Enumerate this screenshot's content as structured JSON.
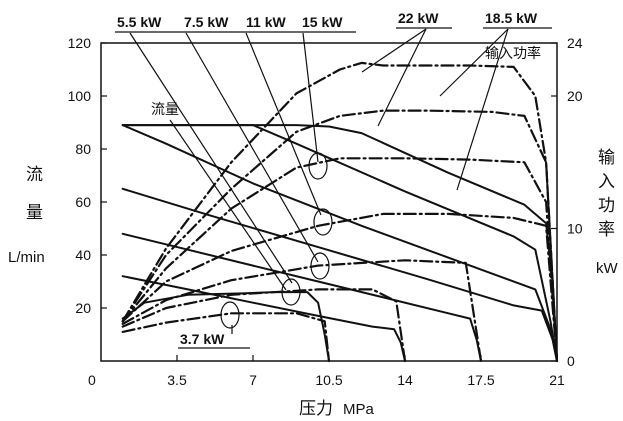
{
  "chart_data": {
    "type": "line",
    "x_axis": {
      "label": "压力",
      "unit": "MPa",
      "range": [
        0,
        21
      ],
      "ticks": [
        0,
        3.5,
        7,
        10.5,
        14,
        17.5,
        21
      ],
      "tick_labels": [
        "0",
        "3.5",
        "7",
        "10.5",
        "14",
        "17.5",
        "21"
      ]
    },
    "y_left": {
      "label_chars": [
        "流",
        "量"
      ],
      "unit": "L/min",
      "range": [
        0,
        120
      ],
      "ticks": [
        20,
        40,
        60,
        80,
        100,
        120
      ],
      "tick_labels": [
        "20",
        "40",
        "60",
        "80",
        "100",
        "120"
      ]
    },
    "y_right": {
      "label_chars": [
        "输",
        "入",
        "功",
        "率"
      ],
      "unit": "kW",
      "range": [
        0,
        24
      ],
      "ticks": [
        0,
        10,
        20,
        24
      ],
      "tick_labels": [
        "0",
        "10",
        "20",
        "24"
      ]
    },
    "annotations": {
      "flow": "流量",
      "power": "输入功率"
    },
    "motor_labels": [
      "5.5 kW",
      "7.5 kW",
      "11 kW",
      "15 kW",
      "22 kW",
      "18.5 kW",
      "3.7 kW"
    ],
    "grid": false,
    "series": [
      {
        "motor": "3.7 kW",
        "kind": "flow",
        "x": [
          1,
          2,
          4,
          6.5,
          8,
          9.5,
          10,
          10.3,
          10.5
        ],
        "y": [
          16,
          22,
          25,
          25.5,
          26,
          26,
          22,
          10,
          0
        ]
      },
      {
        "motor": "5.5 kW",
        "kind": "flow",
        "x": [
          1,
          4,
          7,
          10,
          12.5,
          13.5,
          13.8,
          14
        ],
        "y": [
          32,
          27,
          22,
          17,
          13,
          12,
          7,
          0
        ]
      },
      {
        "motor": "7.5 kW",
        "kind": "flow",
        "x": [
          1,
          4,
          7,
          10,
          13,
          16,
          17,
          17.3,
          17.5
        ],
        "y": [
          48,
          42,
          36,
          30,
          24,
          18,
          16,
          8,
          0
        ]
      },
      {
        "motor": "11 kW",
        "kind": "flow",
        "x": [
          1,
          5,
          10,
          15,
          19,
          20.3,
          20.8,
          21
        ],
        "y": [
          65,
          55,
          43,
          31,
          21,
          19,
          8,
          0
        ]
      },
      {
        "motor": "15 kW",
        "kind": "flow",
        "x": [
          1,
          3,
          7,
          12,
          17,
          20,
          20.7,
          21
        ],
        "y": [
          89,
          82,
          67,
          51,
          36,
          27,
          12,
          0
        ]
      },
      {
        "motor": "18.5 kW",
        "kind": "flow",
        "x": [
          1,
          4,
          7,
          9,
          14,
          19,
          20,
          20.7,
          21
        ],
        "y": [
          89,
          89,
          89,
          82,
          64,
          47,
          42,
          15,
          0
        ]
      },
      {
        "motor": "22 kW",
        "kind": "flow",
        "x": [
          1,
          5,
          9,
          10.5,
          12,
          16,
          19.5,
          20.5,
          20.8,
          21
        ],
        "y": [
          89,
          89,
          89,
          88.5,
          86,
          71,
          59,
          52,
          30,
          0
        ]
      },
      {
        "motor": "3.7 kW",
        "kind": "power",
        "x": [
          1,
          3,
          6,
          9,
          10.3,
          10.5
        ],
        "y": [
          2.2,
          2.9,
          3.6,
          3.6,
          3.0,
          0
        ]
      },
      {
        "motor": "5.5 kW",
        "kind": "power",
        "x": [
          1,
          3,
          6,
          10,
          12.5,
          13.6,
          14
        ],
        "y": [
          2.6,
          4.0,
          5.0,
          5.4,
          5.4,
          4.5,
          0
        ]
      },
      {
        "motor": "7.5 kW",
        "kind": "power",
        "x": [
          1,
          3,
          6,
          10,
          14,
          16.8,
          17.5
        ],
        "y": [
          2.8,
          4.6,
          6.1,
          7.2,
          7.6,
          7.4,
          0
        ]
      },
      {
        "motor": "11 kW",
        "kind": "power",
        "x": [
          1,
          3,
          6,
          10,
          13,
          16,
          19,
          20.5,
          21
        ],
        "y": [
          3.0,
          6.0,
          8.3,
          10.2,
          11.1,
          11.1,
          10.8,
          10.2,
          0
        ]
      },
      {
        "motor": "15 kW",
        "kind": "power",
        "x": [
          1,
          3,
          6,
          9,
          11,
          14,
          17,
          19.5,
          20.5,
          21
        ],
        "y": [
          3.0,
          7.0,
          11.5,
          14.6,
          15.3,
          15.3,
          15.2,
          15.0,
          12.0,
          0
        ]
      },
      {
        "motor": "18.5 kW",
        "kind": "power",
        "x": [
          1,
          3,
          6,
          9,
          11,
          13,
          15,
          18,
          19.5,
          20.5,
          21
        ],
        "y": [
          3.0,
          8.0,
          13.0,
          17.3,
          18.5,
          18.9,
          18.9,
          18.8,
          18.5,
          15.0,
          0
        ]
      },
      {
        "motor": "22 kW",
        "kind": "power",
        "x": [
          1,
          3,
          6,
          9,
          11,
          12,
          13,
          15,
          17,
          19,
          20,
          20.5,
          21
        ],
        "y": [
          3.0,
          8.5,
          15.0,
          20.2,
          22.0,
          22.5,
          22.3,
          22.3,
          22.3,
          22.2,
          20.0,
          15.0,
          0
        ]
      }
    ]
  }
}
